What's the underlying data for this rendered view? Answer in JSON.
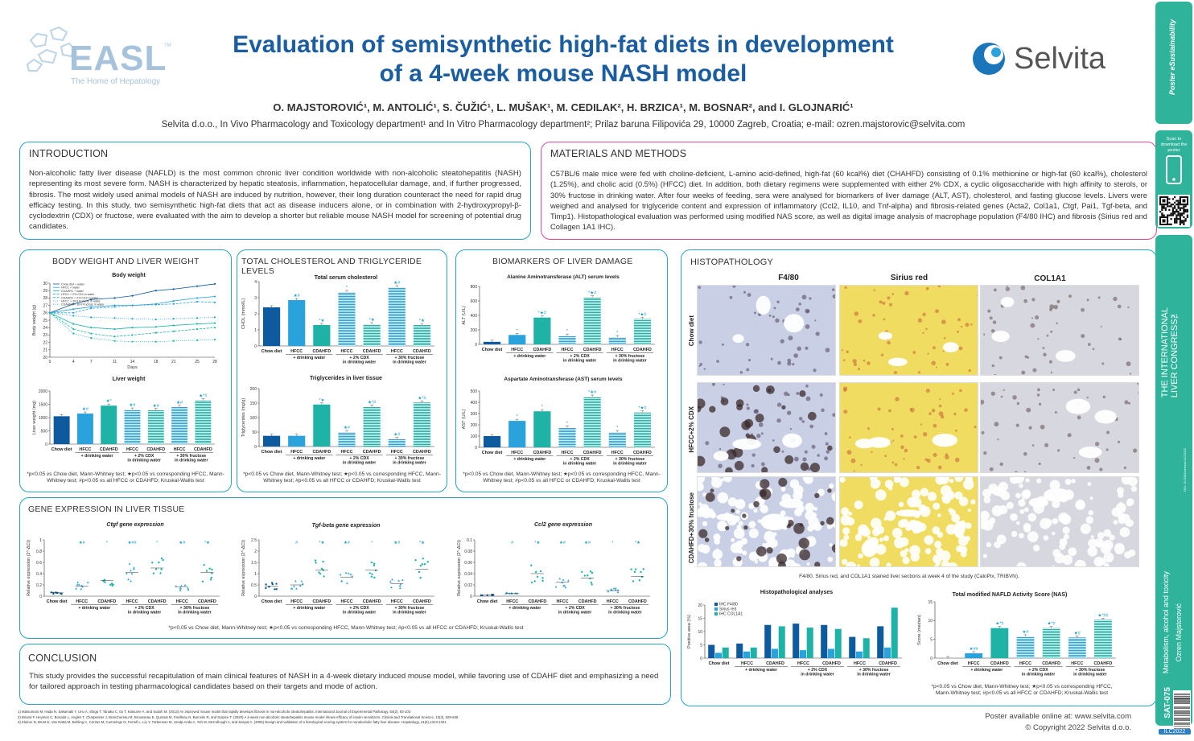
{
  "header": {
    "title_line1": "Evaluation of semisynthetic high-fat diets in development",
    "title_line2": "of a 4-week mouse NASH model",
    "authors": "O. MAJSTOROVIĆ¹, M. ANTOLIĆ¹, S. ČUŽIĆ¹, L. MUŠAK¹, M. CEDILAK², H. BRZICA¹, M. BOSNAR², and I. GLOJNARIĆ¹",
    "affiliation": "Selvita d.o.o., In Vivo Pharmacology and Toxicology department¹ and In Vitro Pharmacology department²; Prilaz baruna Filipovića 29, 10000 Zagreb, Croatia; e-mail: ozren.majstorovic@selvita.com",
    "easl": "EASL",
    "easl_tm": "TM",
    "easl_sub": "The Home of Hepatology",
    "selvita": "Selvita"
  },
  "intro": {
    "heading": "INTRODUCTION",
    "text": "Non-alcoholic fatty liver disease (NAFLD) is the most common chronic liver condition worldwide with non-alcoholic steatohepatitis (NASH) representing its most severe form. NASH is characterized by hepatic steatosis, inflammation, hepatocellular damage, and, if further progressed, fibrosis. The most widely used animal models of NASH are induced by nutrition, however, their long duration counteract the need for rapid drug efficacy testing. In this study, two semisynthetic high-fat diets that act as disease inducers alone, or in combination with 2-hydroxypropyl-β-cyclodextrin (CDX) or fructose, were evaluated with the aim to develop a shorter but reliable mouse NASH model for screening of potential drug candidates."
  },
  "methods": {
    "heading": "MATERIALS AND METHODS",
    "text": "C57BL/6 male mice were fed with choline-deficient, L-amino acid-defined, high-fat (60 kcal%) diet (CHAHFD) consisting of 0.1% methionine or high-fat (60 kcal%), cholesterol (1.25%), and cholic acid (0.5%) (HFCC) diet. In addition, both dietary regimens were supplemented with either 2% CDX, a cyclic oligosaccharide with high affinity to sterols, or 30% fructose in drinking water. After four weeks of feeding, sera were analysed for biomarkers of liver damage (ALT, AST), cholesterol, and fasting glucose levels. Livers were weighed and analysed for triglyceride content and expression of inflammatory (Ccl2, IL10, and Tnf-alpha) and fibrosis-related genes (Acta2, Col1a1, Ctgf, Pai1, Tgf-beta, and Timp1). Histopathological evaluation was performed using modified NAS score, as well as digital image analysis of macrophage population (F4/80 IHC) and fibrosis (Sirius red and Collagen 1A1 IHC)."
  },
  "sections": {
    "bw": "BODY WEIGHT AND LIVER WEIGHT",
    "chol": "TOTAL CHOLESTEROL AND TRIGLYCERIDE LEVELS",
    "bio": "BIOMARKERS OF LIVER DAMAGE",
    "histo": "HISTOPATHOLOGY",
    "gene": "GENE EXPRESSION IN LIVER TISSUE",
    "conc": "CONCLUSION"
  },
  "conclusion": "This study provides the successful recapitulation of main clinical features of NASH in a 4-week dietary induced mouse model, while favoring use of CDAHF diet and emphasizing a need for tailored approach in testing pharmacological candidates based on their targets and mode of action.",
  "categories": [
    "Chow diet",
    "HFCC",
    "CDAHFD",
    "HFCC",
    "CDAHFD",
    "HFCC",
    "CDAHFD"
  ],
  "groups": [
    "+ drinking water",
    "+ 2% CDX in drinking water",
    "+ 30% fructose in drinking water"
  ],
  "note_mw": "*p<0.05 vs Chow diet, Mann-Whitney test; ★p<0.05 vs corresponding HFCC, Mann-Whitney test; #p<0.05 vs all HFCC or CDAHFD; Kruskal-Wallis test",
  "colors": {
    "c1": "#0d5b9e",
    "c2": "#2aa3dc",
    "c3": "#1fb3a8",
    "accent": "#27a3c7",
    "pink": "#e0489a"
  },
  "chart_data": [
    {
      "type": "line",
      "title": "Body weight",
      "xlabel": "Days",
      "ylabel": "Body weight (g)",
      "x": [
        0,
        4,
        7,
        11,
        14,
        18,
        21,
        25,
        28
      ],
      "ylim": [
        20,
        30
      ],
      "series": [
        {
          "name": "Chow diet + water",
          "values": [
            26,
            27.2,
            27.8,
            28,
            28.3,
            29,
            29.2,
            29.6,
            29.9
          ]
        },
        {
          "name": "HFCC + water",
          "values": [
            26,
            26.5,
            26.8,
            27,
            27,
            27.2,
            27.6,
            28,
            28.2
          ]
        },
        {
          "name": "CDAHFD + water",
          "values": [
            26,
            24.5,
            24,
            23.8,
            24,
            24.1,
            24.3,
            24.5,
            24.6
          ]
        },
        {
          "name": "HFCC + 2% CDX in water",
          "values": [
            26,
            26,
            26.6,
            26.8,
            27,
            27.1,
            27.2,
            27.5,
            27.4
          ]
        },
        {
          "name": "CDAHFD + 2% CDX in water",
          "values": [
            26,
            23.8,
            23.2,
            22.8,
            23,
            23.3,
            23.5,
            23.8,
            24
          ]
        },
        {
          "name": "HFCC + 30% fructose in water",
          "values": [
            26,
            25.6,
            25.4,
            25.3,
            25.2,
            25.1,
            25.2,
            25.3,
            25.4
          ]
        },
        {
          "name": "CDAHFD + 30% fructose in water",
          "values": [
            26,
            23.2,
            22.6,
            22.2,
            22.1,
            22.1,
            22.2,
            22.3,
            22.4
          ]
        }
      ]
    },
    {
      "type": "bar",
      "title": "Liver weight",
      "ylabel": "Liver weight (mg)",
      "ylim": [
        0,
        2000
      ],
      "values": [
        1050,
        1150,
        1450,
        1300,
        1280,
        1400,
        1650
      ],
      "labels": [
        "",
        "★#",
        "★*",
        "★#",
        "★#",
        "★#",
        "★*#"
      ]
    },
    {
      "type": "bar",
      "title": "Total serum cholesterol",
      "ylabel": "CHOL (mmol/L)",
      "ylim": [
        0,
        4
      ],
      "values": [
        2.4,
        2.85,
        1.3,
        3.35,
        1.35,
        3.65,
        1.3
      ],
      "labels": [
        "",
        "★#",
        "*★",
        "*",
        "*★",
        "★#",
        "*★"
      ]
    },
    {
      "type": "bar",
      "title": "Triglycerides in liver tissue",
      "ylabel": "Triglycerides (mg/g)",
      "ylim": [
        0,
        200
      ],
      "values": [
        37,
        37,
        145,
        50,
        138,
        27,
        152
      ],
      "labels": [
        "",
        "",
        "*★",
        "★#",
        "★*#",
        "★#",
        "★*#"
      ]
    },
    {
      "type": "bar",
      "title": "Alanine Aminotransferase (ALT) serum levels",
      "ylabel": "ALT (U/L)",
      "ylim": [
        0,
        800
      ],
      "values": [
        35,
        130,
        370,
        120,
        650,
        100,
        350
      ],
      "labels": [
        "",
        "*",
        "*★#",
        "*",
        "*★#",
        "*",
        "*★#"
      ]
    },
    {
      "type": "bar",
      "title": "Aspartate Aminotransferase (AST) serum levels",
      "ylabel": "AST (U/L)",
      "ylim": [
        0,
        500
      ],
      "values": [
        100,
        235,
        320,
        175,
        450,
        135,
        310
      ],
      "labels": [
        "",
        "*",
        "*",
        "*",
        "*★#",
        "*",
        "*★#"
      ]
    },
    {
      "type": "scatter",
      "title": "Ctgf gene expression",
      "ylabel": "Relative expression (2^-ΔCt)",
      "ylim": [
        0,
        1.0
      ],
      "values": [
        0.06,
        0.18,
        0.28,
        0.42,
        0.5,
        0.17,
        0.42
      ],
      "labels": [
        "",
        "★#",
        "*",
        "★##",
        "*",
        "★#",
        "*★"
      ]
    },
    {
      "type": "scatter",
      "title": "Tgf-beta gene expression",
      "ylabel": "Relative expression (2^-ΔCt)",
      "ylim": [
        0,
        2.5
      ],
      "values": [
        0.45,
        0.5,
        1.15,
        0.85,
        1.15,
        0.55,
        1.2
      ],
      "labels": [
        "",
        "#",
        "*★",
        "★#",
        "*",
        "★#",
        "*★"
      ]
    },
    {
      "type": "scatter",
      "title": "Ccl2 gene expression",
      "ylabel": "Relative expression (2^-ΔCt)",
      "ylim": [
        0,
        0.1
      ],
      "values": [
        0.002,
        0.005,
        0.04,
        0.025,
        0.032,
        0.01,
        0.035
      ],
      "labels": [
        "",
        "#",
        "*★",
        "★#",
        "★#",
        "*",
        "*★"
      ]
    },
    {
      "type": "bar",
      "title": "Histopathological analyses",
      "ylabel": "Positive area (%)",
      "ylim": [
        0,
        20
      ],
      "series": [
        {
          "name": "IHC F4/80",
          "values": [
            5,
            5.5,
            12.5,
            13,
            12.5,
            8,
            12
          ]
        },
        {
          "name": "Sirius red",
          "values": [
            2,
            2.5,
            3.5,
            3,
            3.5,
            2.5,
            4
          ]
        },
        {
          "name": "IHC COL1A1",
          "values": [
            4,
            4,
            12,
            11.5,
            11,
            7.5,
            19
          ]
        }
      ]
    },
    {
      "type": "bar",
      "title": "Total modified NAFLD Activity Score (NAS)",
      "ylabel": "Score (median)",
      "ylim": [
        0,
        15
      ],
      "values": [
        0,
        1.3,
        8,
        5.8,
        8,
        5.5,
        10.2
      ],
      "labels": [
        "",
        "★##",
        "★*#",
        "★#",
        "★*#",
        "★#",
        "★*##"
      ]
    }
  ],
  "histo": {
    "cols": [
      "F4/80",
      "Sirius red",
      "COL1A1"
    ],
    "rows": [
      "Chow diet",
      "HFCC+2% CDX",
      "CDAHFD+30% fructose"
    ],
    "caption": "F4/80, Sirius red, and COL1A1 stained liver sections at week 4 of the study (CaloPix, TRIBVN).",
    "scale": "200 µm"
  },
  "footer": {
    "online": "Poster available online at: www.selvita.com",
    "copyright": "© Copyright 2022 Selvita d.o.o."
  },
  "refs": [
    "1)    Matsumoto M, Hada N, Sakamaki Y, Uno A, Shiga T, Tanaka C, Ito T, Katsume A, and Sudoh M. (2013) An improved mouse model that rapidly develops fibrosis in non-alcoholic steatohepatitis. International Journal of Experimental Pathology, 94(2), 93-103",
    "2)    Briand F, Heymes C, Bonada L, Angles T, Charpentier J, Branchereau M, Brousseau E, Quinsat M, Fazilleau N, Burcelin R, and Sulpice T. (2020) A 4-week non-alcoholic steatohepatitis mouse model shows efficacy of insulin sensitizers. Clinical and Translational Science, 13(3), 529-538",
    "3)    Kleiner D, Brunt E, Van Natta M, Behling C, Contos M, Cummings O, Ferrell L, Liu Y, Torbenson M, Unalp-Arida A, Yeh M, McCullough A, and Sanyal A. (2005) Design and validation of a histological scoring system for nonalcoholic fatty liver disease. Hepatology, 41(6),1313-1321"
  ],
  "side": {
    "congress1": "THE INTERNATIONAL",
    "congress2": "LIVER CONGRESS™",
    "scan": "Scan to download the poster",
    "track": "Metabolism, alcohol and toxicity",
    "author": "Ozren Majstorović",
    "code": "SAT-075",
    "ilc": "ILC2022",
    "doi": "DOI: 10.5281/zenodo.ILC2022",
    "porter": "Poster eSustainability"
  }
}
